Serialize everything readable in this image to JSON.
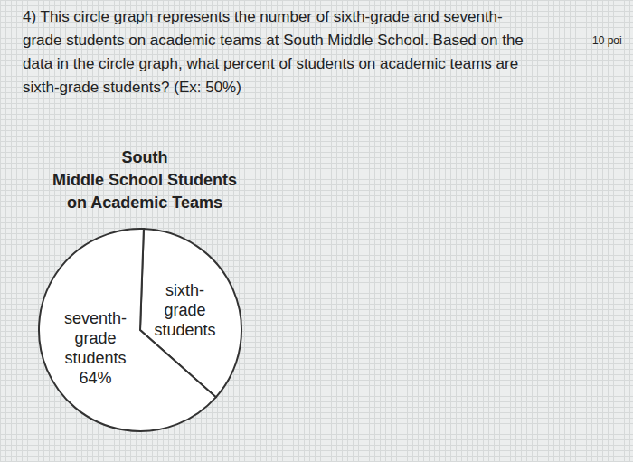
{
  "question": {
    "text": "4) This circle graph represents the number of sixth-grade and seventh-\ngrade students on academic teams at South Middle School. Based on the\ndata in the circle graph, what percent of students on academic teams are\nsixth-grade students? (Ex: 50%)",
    "points": "10 poi"
  },
  "chart_data": {
    "type": "pie",
    "title": "South\nMiddle School Students\non Academic Teams",
    "categories": [
      "sixth-\ngrade\nstudents",
      "seventh-\ngrade\nstudents"
    ],
    "values": [
      36,
      64
    ],
    "value_labels": [
      null,
      "64%"
    ],
    "colors": [
      "#ffffff",
      "#ffffff"
    ]
  }
}
